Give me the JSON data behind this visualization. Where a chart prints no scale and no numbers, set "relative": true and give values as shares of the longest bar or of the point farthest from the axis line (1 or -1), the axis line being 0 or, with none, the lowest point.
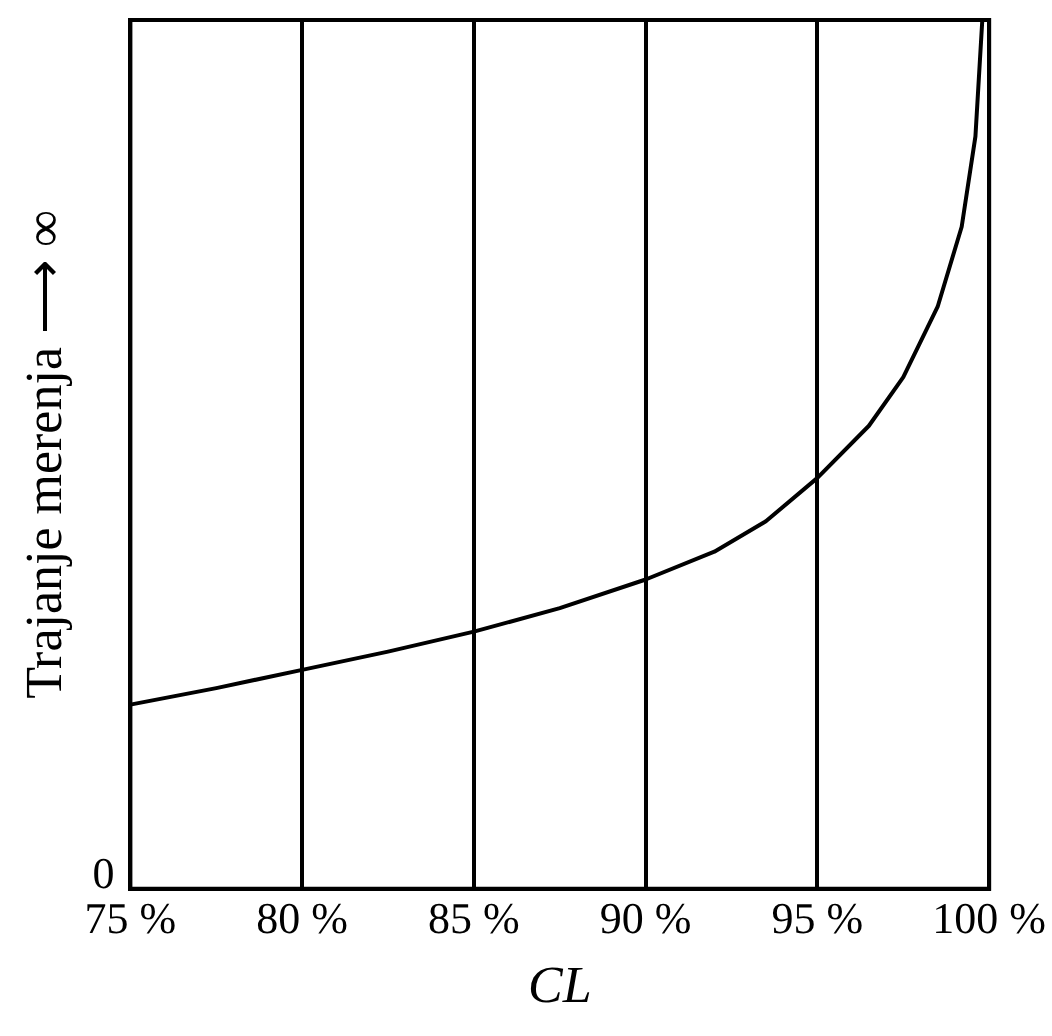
{
  "chart_data": {
    "type": "line",
    "xlabel": "CL",
    "ylabel": "Trajanje merenja ⟶ ∞",
    "relative": true,
    "grid": "x",
    "marker": "none",
    "line_style": "solid",
    "legend": false,
    "xlim": [
      75,
      100
    ],
    "xticks": [
      {
        "value": 75,
        "label": "75 %"
      },
      {
        "value": 80,
        "label": "80 %"
      },
      {
        "value": 85,
        "label": "85 %"
      },
      {
        "value": 90,
        "label": "90 %"
      },
      {
        "value": 95,
        "label": "95 %"
      },
      {
        "value": 100,
        "label": "100 %"
      }
    ],
    "annotations": [
      "0"
    ],
    "series": [
      {
        "color": "#000000",
        "x": [
          75,
          77.5,
          80,
          82.5,
          85,
          87.5,
          90,
          92,
          93.5,
          95,
          96.5,
          97.5,
          98.5,
          99.2,
          99.6,
          99.8
        ],
        "values": [
          0.212,
          0.231,
          0.252,
          0.273,
          0.296,
          0.323,
          0.356,
          0.388,
          0.423,
          0.473,
          0.533,
          0.589,
          0.67,
          0.762,
          0.866,
          1.0
        ]
      }
    ]
  }
}
